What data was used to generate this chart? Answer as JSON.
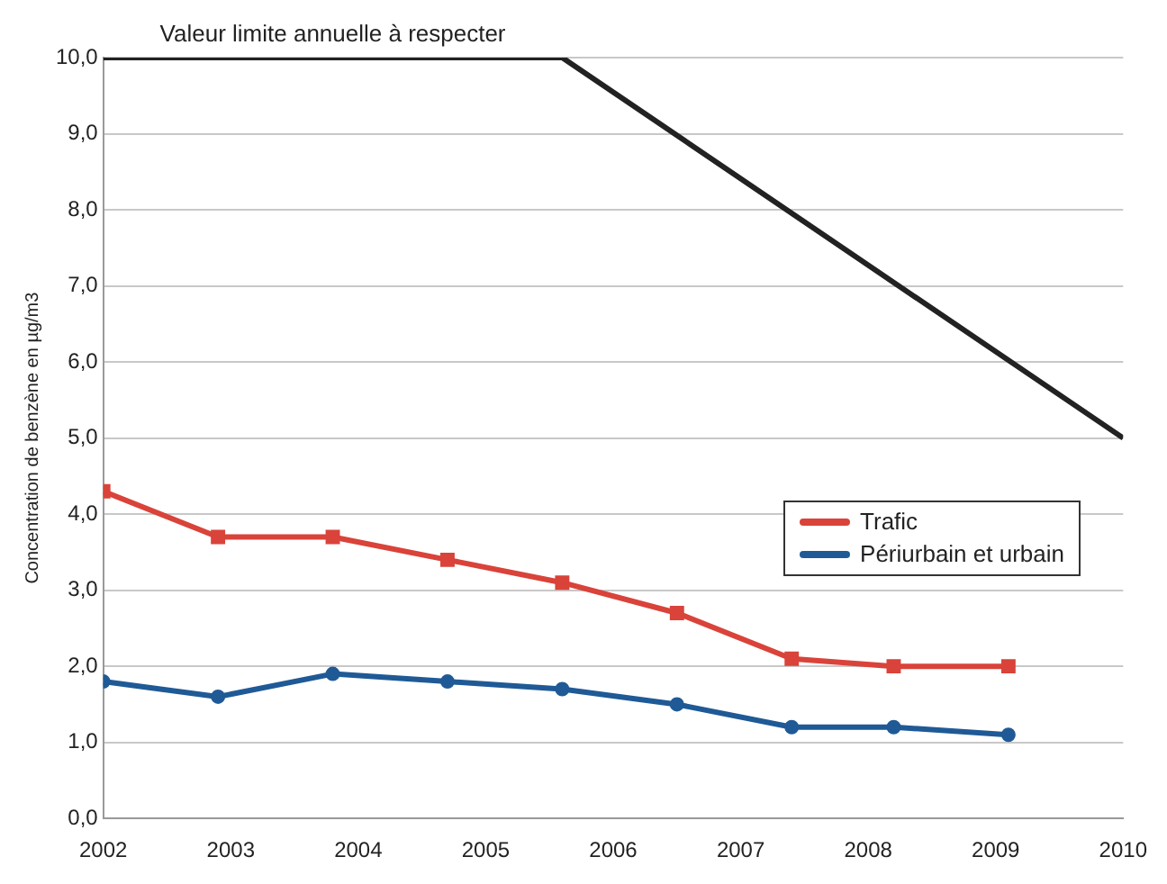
{
  "chart_data": {
    "type": "line",
    "ylabel": "Concentration de benzène en µg/m3",
    "xlim": [
      2002,
      2010
    ],
    "xticks": [
      2002,
      2003,
      2004,
      2005,
      2006,
      2007,
      2008,
      2009,
      2010
    ],
    "ylim": [
      0,
      10
    ],
    "yticks": [
      {
        "value": 0,
        "label": "0,0"
      },
      {
        "value": 1,
        "label": "1,0"
      },
      {
        "value": 2,
        "label": "2,0"
      },
      {
        "value": 3,
        "label": "3,0"
      },
      {
        "value": 4,
        "label": "4,0"
      },
      {
        "value": 5,
        "label": "5,0"
      },
      {
        "value": 6,
        "label": "6,0"
      },
      {
        "value": 7,
        "label": "7,0"
      },
      {
        "value": 8,
        "label": "8,0"
      },
      {
        "value": 9,
        "label": "9,0"
      },
      {
        "value": 10,
        "label": "10,0"
      }
    ],
    "grid": "y",
    "legend": "right",
    "series": [
      {
        "name": "Trafic",
        "color": "#d9433a",
        "marker": "square",
        "x": [
          2002,
          2002.9,
          2003.8,
          2004.7,
          2005.6,
          2006.5,
          2007.4,
          2008.2,
          2009.1
        ],
        "values": [
          4.3,
          3.7,
          3.7,
          3.4,
          3.1,
          2.7,
          2.1,
          2.0,
          2.0
        ]
      },
      {
        "name": "Périurbain et urbain",
        "color": "#1f5a96",
        "marker": "circle",
        "x": [
          2002,
          2002.9,
          2003.8,
          2004.7,
          2005.6,
          2006.5,
          2007.4,
          2008.2,
          2009.1
        ],
        "values": [
          1.8,
          1.6,
          1.9,
          1.8,
          1.7,
          1.5,
          1.2,
          1.2,
          1.1
        ]
      },
      {
        "color": "#222222",
        "marker": "none",
        "x": [
          2002,
          2005.6,
          2010
        ],
        "values": [
          10,
          10,
          5
        ]
      }
    ],
    "annotations": [
      {
        "text": "Valeur limite annuelle à respecter",
        "x": 2003.8,
        "y": 10
      }
    ]
  }
}
